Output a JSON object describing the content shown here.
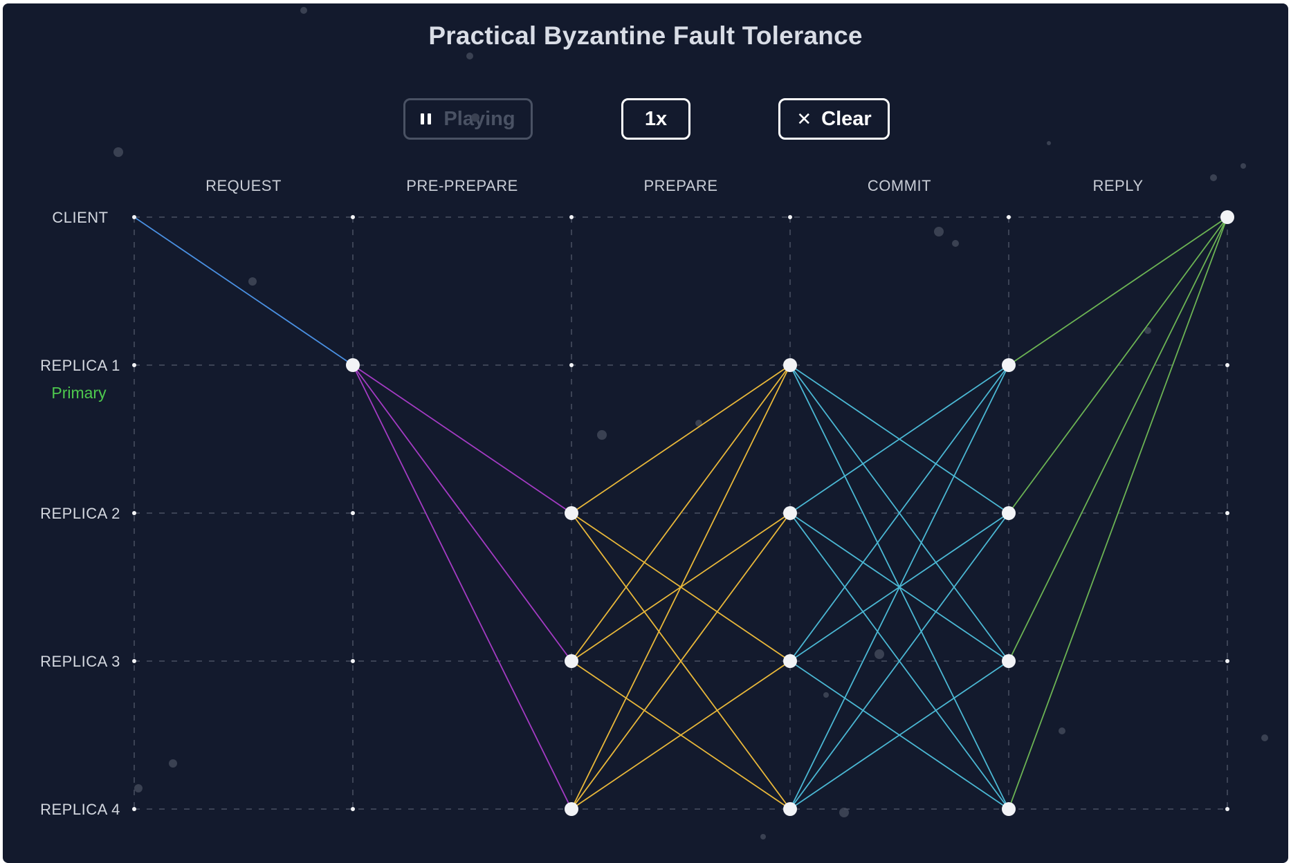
{
  "title": "Practical Byzantine Fault Tolerance",
  "controls": {
    "play_label": "Playing",
    "play_disabled": true,
    "speed_label": "1x",
    "clear_label": "Clear"
  },
  "phases": [
    "REQUEST",
    "PRE-PREPARE",
    "PREPARE",
    "COMMIT",
    "REPLY"
  ],
  "participants": [
    {
      "label": "CLIENT"
    },
    {
      "label": "REPLICA 1",
      "badge": "Primary"
    },
    {
      "label": "REPLICA 2"
    },
    {
      "label": "REPLICA 3"
    },
    {
      "label": "REPLICA 4"
    }
  ],
  "colors": {
    "background": "#131a2d",
    "request": "#4a90e2",
    "pre_prepare": "#a43bc4",
    "prepare": "#e9b83a",
    "commit": "#4bb8d4",
    "reply": "#6cb454",
    "primary": "#4ec94e"
  },
  "messages": [
    {
      "phase": "request",
      "from": [
        0,
        0
      ],
      "to": [
        1,
        1
      ]
    },
    {
      "phase": "pre_prepare",
      "from": [
        1,
        1
      ],
      "to": [
        2,
        2
      ]
    },
    {
      "phase": "pre_prepare",
      "from": [
        1,
        1
      ],
      "to": [
        2,
        3
      ]
    },
    {
      "phase": "pre_prepare",
      "from": [
        1,
        1
      ],
      "to": [
        2,
        4
      ]
    },
    {
      "phase": "prepare",
      "from": [
        2,
        2
      ],
      "to": [
        3,
        1
      ]
    },
    {
      "phase": "prepare",
      "from": [
        2,
        2
      ],
      "to": [
        3,
        3
      ]
    },
    {
      "phase": "prepare",
      "from": [
        2,
        2
      ],
      "to": [
        3,
        4
      ]
    },
    {
      "phase": "prepare",
      "from": [
        2,
        3
      ],
      "to": [
        3,
        1
      ]
    },
    {
      "phase": "prepare",
      "from": [
        2,
        3
      ],
      "to": [
        3,
        2
      ]
    },
    {
      "phase": "prepare",
      "from": [
        2,
        3
      ],
      "to": [
        3,
        4
      ]
    },
    {
      "phase": "prepare",
      "from": [
        2,
        4
      ],
      "to": [
        3,
        1
      ]
    },
    {
      "phase": "prepare",
      "from": [
        2,
        4
      ],
      "to": [
        3,
        2
      ]
    },
    {
      "phase": "prepare",
      "from": [
        2,
        4
      ],
      "to": [
        3,
        3
      ]
    },
    {
      "phase": "commit",
      "from": [
        3,
        1
      ],
      "to": [
        4,
        2
      ]
    },
    {
      "phase": "commit",
      "from": [
        3,
        1
      ],
      "to": [
        4,
        3
      ]
    },
    {
      "phase": "commit",
      "from": [
        3,
        1
      ],
      "to": [
        4,
        4
      ]
    },
    {
      "phase": "commit",
      "from": [
        3,
        2
      ],
      "to": [
        4,
        1
      ]
    },
    {
      "phase": "commit",
      "from": [
        3,
        2
      ],
      "to": [
        4,
        3
      ]
    },
    {
      "phase": "commit",
      "from": [
        3,
        2
      ],
      "to": [
        4,
        4
      ]
    },
    {
      "phase": "commit",
      "from": [
        3,
        3
      ],
      "to": [
        4,
        1
      ]
    },
    {
      "phase": "commit",
      "from": [
        3,
        3
      ],
      "to": [
        4,
        2
      ]
    },
    {
      "phase": "commit",
      "from": [
        3,
        3
      ],
      "to": [
        4,
        4
      ]
    },
    {
      "phase": "commit",
      "from": [
        3,
        4
      ],
      "to": [
        4,
        1
      ]
    },
    {
      "phase": "commit",
      "from": [
        3,
        4
      ],
      "to": [
        4,
        2
      ]
    },
    {
      "phase": "commit",
      "from": [
        3,
        4
      ],
      "to": [
        4,
        3
      ]
    },
    {
      "phase": "reply",
      "from": [
        4,
        1
      ],
      "to": [
        5,
        0
      ]
    },
    {
      "phase": "reply",
      "from": [
        4,
        2
      ],
      "to": [
        5,
        0
      ]
    },
    {
      "phase": "reply",
      "from": [
        4,
        3
      ],
      "to": [
        5,
        0
      ]
    },
    {
      "phase": "reply",
      "from": [
        4,
        4
      ],
      "to": [
        5,
        0
      ]
    }
  ],
  "active_nodes": [
    [
      1,
      1
    ],
    [
      2,
      2
    ],
    [
      2,
      3
    ],
    [
      2,
      4
    ],
    [
      3,
      1
    ],
    [
      3,
      2
    ],
    [
      3,
      3
    ],
    [
      3,
      4
    ],
    [
      4,
      1
    ],
    [
      4,
      2
    ],
    [
      4,
      3
    ],
    [
      4,
      4
    ],
    [
      5,
      0
    ]
  ]
}
